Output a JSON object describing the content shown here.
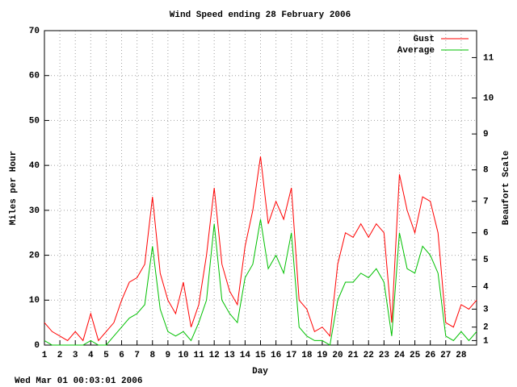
{
  "chart_data": {
    "type": "line",
    "title": "Wind Speed ending 28 February 2006",
    "x_label": "Day",
    "y_label": "Miles per Hour",
    "y2_label": "Beaufort Scale",
    "footer": "Wed Mar 01 00:03:01 2006",
    "x": [
      1,
      1.5,
      2,
      2.5,
      3,
      3.5,
      4,
      4.5,
      5,
      5.5,
      6,
      6.5,
      7,
      7.5,
      8,
      8.5,
      9,
      9.5,
      10,
      10.5,
      11,
      11.5,
      12,
      12.5,
      13,
      13.5,
      14,
      14.5,
      15,
      15.5,
      16,
      16.5,
      17,
      17.5,
      18,
      18.5,
      19,
      19.5,
      20,
      20.5,
      21,
      21.5,
      22,
      22.5,
      23,
      23.5,
      24,
      24.5,
      25,
      25.5,
      26,
      26.5,
      27,
      27.5,
      28,
      28.5,
      29
    ],
    "series": [
      {
        "name": "Gust",
        "color": "#ff0000",
        "values": [
          5,
          3,
          2,
          1,
          3,
          1,
          7,
          1,
          3,
          5,
          10,
          14,
          15,
          18,
          33,
          16,
          10,
          7,
          14,
          4,
          9,
          20,
          35,
          18,
          12,
          9,
          22,
          30,
          42,
          27,
          32,
          28,
          35,
          10,
          8,
          3,
          4,
          2,
          18,
          25,
          24,
          27,
          24,
          27,
          25,
          5,
          38,
          30,
          25,
          33,
          32,
          25,
          5,
          4,
          9,
          8,
          10
        ]
      },
      {
        "name": "Average",
        "color": "#00c000",
        "values": [
          1,
          0,
          0,
          0,
          0,
          0,
          1,
          0,
          0,
          2,
          4,
          6,
          7,
          9,
          22,
          8,
          3,
          2,
          3,
          1,
          5,
          10,
          27,
          10,
          7,
          5,
          15,
          18,
          28,
          17,
          20,
          16,
          25,
          4,
          2,
          1,
          1,
          0,
          10,
          14,
          14,
          16,
          15,
          17,
          14,
          2,
          25,
          17,
          16,
          22,
          20,
          16,
          2,
          1,
          3,
          1,
          3
        ]
      }
    ],
    "xlim": [
      1,
      29
    ],
    "xticks": [
      1,
      2,
      3,
      4,
      5,
      6,
      7,
      8,
      9,
      10,
      11,
      12,
      13,
      14,
      15,
      16,
      17,
      18,
      19,
      20,
      21,
      22,
      23,
      24,
      25,
      26,
      27,
      28
    ],
    "ylim": [
      0,
      70
    ],
    "yticks": [
      0,
      10,
      20,
      30,
      40,
      50,
      60,
      70
    ],
    "y2ticks": [
      1,
      2,
      3,
      4,
      5,
      6,
      7,
      8,
      9,
      10,
      11
    ],
    "y2tick_mph": [
      1,
      4,
      8,
      13,
      19,
      25,
      32,
      39,
      47,
      55,
      64
    ],
    "grid": true,
    "legend": "top-right"
  }
}
